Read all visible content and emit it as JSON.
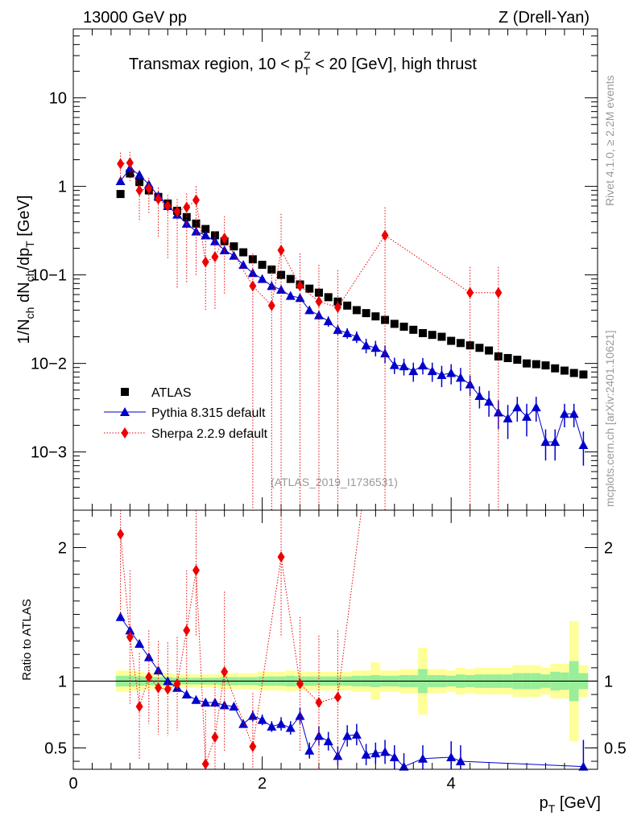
{
  "header": {
    "left": "13000 GeV pp",
    "right": "Z (Drell-Yan)"
  },
  "side_text": {
    "rivet": "Rivet 4.1.0, ≥ 2.2M events",
    "mcplots": "mcplots.cern.ch [arXiv:2401.10621]"
  },
  "chart_data": [
    {
      "type": "scatter",
      "panel": "main",
      "title": "Transmax region, 10 < pTZ < 20 [GeV], high thrust",
      "ylabel": "1/Nch dNch/dpT [GeV]",
      "yscale": "log",
      "xlim": [
        0,
        5.55
      ],
      "ylim": [
        0.00022,
        60
      ],
      "yticks": [
        "10",
        "1",
        "10−1",
        "10−2",
        "10−3"
      ],
      "watermark": "(ATLAS_2019_I1736531)",
      "legend": [
        "ATLAS",
        "Pythia 8.315 default",
        "Sherpa 2.2.9 default"
      ],
      "legend_position": "bottom-left",
      "x": [
        0.5,
        0.6,
        0.7,
        0.8,
        0.9,
        1.0,
        1.1,
        1.2,
        1.3,
        1.4,
        1.5,
        1.6,
        1.7,
        1.8,
        1.9,
        2.0,
        2.1,
        2.2,
        2.3,
        2.4,
        2.5,
        2.6,
        2.7,
        2.8,
        2.9,
        3.0,
        3.1,
        3.2,
        3.3,
        3.4,
        3.5,
        3.6,
        3.7,
        3.8,
        3.9,
        4.0,
        4.1,
        4.2,
        4.3,
        4.4,
        4.5,
        4.6,
        4.7,
        4.8,
        4.9,
        5.0,
        5.1,
        5.2,
        5.3,
        5.4
      ],
      "series": [
        {
          "name": "ATLAS",
          "color": "#000000",
          "marker": "square",
          "values": [
            0.82,
            1.4,
            1.12,
            0.9,
            0.76,
            0.64,
            0.53,
            0.45,
            0.38,
            0.33,
            0.28,
            0.24,
            0.21,
            0.18,
            0.15,
            0.13,
            0.115,
            0.1,
            0.09,
            0.078,
            0.07,
            0.063,
            0.056,
            0.05,
            0.045,
            0.04,
            0.037,
            0.034,
            0.031,
            0.028,
            0.026,
            0.024,
            0.022,
            0.021,
            0.02,
            0.018,
            0.017,
            0.016,
            0.015,
            0.014,
            0.012,
            0.0115,
            0.011,
            0.01,
            0.0098,
            0.0095,
            0.0088,
            0.0083,
            0.0078,
            0.0075
          ]
        },
        {
          "name": "Pythia 8.315 default",
          "color": "#0000cc",
          "marker": "triangle",
          "values": [
            1.15,
            1.6,
            1.35,
            1.05,
            0.78,
            0.6,
            0.48,
            0.38,
            0.31,
            0.28,
            0.24,
            0.19,
            0.165,
            0.13,
            0.105,
            0.09,
            0.075,
            0.068,
            0.058,
            0.055,
            0.04,
            0.035,
            0.03,
            0.024,
            0.022,
            0.02,
            0.016,
            0.015,
            0.013,
            0.0096,
            0.0093,
            0.0082,
            0.0095,
            0.0082,
            0.0074,
            0.0078,
            0.0069,
            0.0058,
            0.0043,
            0.0037,
            0.0028,
            0.0024,
            0.0032,
            0.0025,
            0.0032,
            0.0013,
            0.0013,
            0.0027,
            0.0027,
            0.0012
          ],
          "errors": [
            0.08,
            0.1,
            0.09,
            0.07,
            0.05,
            0.04,
            0.03,
            0.025,
            0.02,
            0.02,
            0.015,
            0.013,
            0.011,
            0.009,
            0.008,
            0.007,
            0.006,
            0.006,
            0.005,
            0.005,
            0.004,
            0.004,
            0.004,
            0.003,
            0.003,
            0.003,
            0.003,
            0.003,
            0.003,
            0.002,
            0.002,
            0.002,
            0.002,
            0.002,
            0.002,
            0.002,
            0.002,
            0.0015,
            0.0012,
            0.0012,
            0.001,
            0.001,
            0.001,
            0.001,
            0.001,
            0.0005,
            0.0005,
            0.0008,
            0.0008,
            0.0005
          ]
        },
        {
          "name": "Sherpa 2.2.9 default",
          "color": "#ee0000",
          "marker": "diamond",
          "x": [
            0.5,
            0.6,
            0.7,
            0.8,
            0.9,
            1.0,
            1.1,
            1.2,
            1.3,
            1.4,
            1.5,
            1.6,
            1.9,
            2.1,
            2.2,
            2.4,
            2.6,
            2.8,
            3.3,
            4.2,
            4.5
          ],
          "values": [
            1.8,
            1.85,
            0.9,
            0.95,
            0.72,
            0.6,
            0.52,
            0.58,
            0.7,
            0.14,
            0.16,
            0.26,
            0.075,
            0.045,
            0.19,
            0.075,
            0.05,
            0.043,
            0.28,
            0.063,
            0.063
          ],
          "errors_up": [
            0.6,
            0.6,
            0.4,
            0.3,
            0.25,
            0.2,
            0.2,
            0.25,
            0.3,
            0.12,
            0.15,
            0.2,
            0.1,
            0.08,
            0.3,
            0.1,
            0.08,
            0.07,
            0.3,
            0.06,
            0.06
          ],
          "errors_down": [
            0.6,
            0.7,
            0.5,
            0.45,
            0.45,
            0.45,
            0.45,
            0.5,
            0.6,
            0.1,
            0.12,
            0.2,
            0.075,
            0.045,
            0.19,
            0.075,
            0.05,
            0.043,
            0.28,
            0.063,
            0.063
          ]
        }
      ]
    },
    {
      "type": "scatter",
      "panel": "ratio",
      "ylabel": "Ratio to ATLAS",
      "xlabel": "pT [GeV]",
      "xlim": [
        0,
        5.55
      ],
      "ylim": [
        0.34,
        2.28
      ],
      "yticks": [
        "2",
        "1",
        "0.5"
      ],
      "xticks": [
        "0",
        "2",
        "4"
      ],
      "reference": 1,
      "band_inner_halfwidths": [
        0.04,
        0.04,
        0.035,
        0.03,
        0.03,
        0.03,
        0.025,
        0.025,
        0.025,
        0.025,
        0.025,
        0.03,
        0.03,
        0.03,
        0.03,
        0.035,
        0.035,
        0.035,
        0.04,
        0.035,
        0.035,
        0.035,
        0.035,
        0.035,
        0.035,
        0.04,
        0.04,
        0.045,
        0.04,
        0.04,
        0.045,
        0.045,
        0.09,
        0.045,
        0.045,
        0.04,
        0.05,
        0.045,
        0.05,
        0.05,
        0.05,
        0.05,
        0.06,
        0.06,
        0.06,
        0.05,
        0.07,
        0.065,
        0.15,
        0.06
      ],
      "band_outer_halfwidths": [
        0.08,
        0.08,
        0.07,
        0.06,
        0.06,
        0.06,
        0.05,
        0.05,
        0.05,
        0.05,
        0.05,
        0.06,
        0.06,
        0.06,
        0.06,
        0.07,
        0.07,
        0.07,
        0.08,
        0.07,
        0.07,
        0.07,
        0.07,
        0.07,
        0.07,
        0.08,
        0.08,
        0.14,
        0.08,
        0.08,
        0.09,
        0.09,
        0.25,
        0.09,
        0.09,
        0.08,
        0.1,
        0.09,
        0.1,
        0.1,
        0.1,
        0.1,
        0.12,
        0.12,
        0.12,
        0.1,
        0.13,
        0.13,
        0.45,
        0.12
      ],
      "series": [
        {
          "name": "Pythia 8.315 default",
          "x": [
            0.5,
            0.6,
            0.7,
            0.8,
            0.9,
            1.0,
            1.1,
            1.2,
            1.3,
            1.4,
            1.5,
            1.6,
            1.7,
            1.8,
            1.9,
            2.0,
            2.1,
            2.2,
            2.3,
            2.4,
            2.5,
            2.6,
            2.7,
            2.8,
            2.9,
            3.0,
            3.1,
            3.2,
            3.3,
            3.4,
            3.5,
            3.7,
            4.0,
            4.1,
            5.4
          ],
          "values": [
            1.48,
            1.38,
            1.28,
            1.18,
            1.08,
            1.0,
            0.95,
            0.9,
            0.86,
            0.84,
            0.84,
            0.82,
            0.81,
            0.68,
            0.74,
            0.71,
            0.66,
            0.68,
            0.65,
            0.74,
            0.48,
            0.59,
            0.55,
            0.44,
            0.59,
            0.6,
            0.45,
            0.46,
            0.47,
            0.43,
            0.36,
            0.42,
            0.43,
            0.4,
            0.36
          ],
          "errors": [
            0.03,
            0.03,
            0.03,
            0.03,
            0.03,
            0.03,
            0.03,
            0.03,
            0.03,
            0.03,
            0.03,
            0.03,
            0.03,
            0.03,
            0.04,
            0.04,
            0.04,
            0.05,
            0.05,
            0.06,
            0.06,
            0.07,
            0.07,
            0.07,
            0.08,
            0.08,
            0.08,
            0.08,
            0.09,
            0.09,
            0.1,
            0.1,
            0.12,
            0.12,
            0.2
          ]
        },
        {
          "name": "Sherpa 2.2.9 default",
          "x": [
            0.5,
            0.6,
            0.7,
            0.8,
            0.9,
            1.0,
            1.1,
            1.2,
            1.3,
            1.4,
            1.5,
            1.6,
            1.9,
            2.2,
            2.4,
            2.6,
            2.8
          ],
          "values": [
            2.1,
            1.33,
            0.81,
            1.03,
            0.95,
            0.94,
            0.98,
            1.38,
            1.83,
            0.38,
            0.58,
            1.07,
            0.51,
            1.93,
            0.98,
            0.84,
            0.88
          ],
          "errors": [
            0.6,
            0.5,
            0.4,
            0.35,
            0.35,
            0.35,
            0.35,
            0.45,
            0.5,
            0.4,
            0.4,
            0.6,
            0.4,
            0.6,
            0.5,
            0.5,
            0.5
          ]
        }
      ]
    }
  ]
}
